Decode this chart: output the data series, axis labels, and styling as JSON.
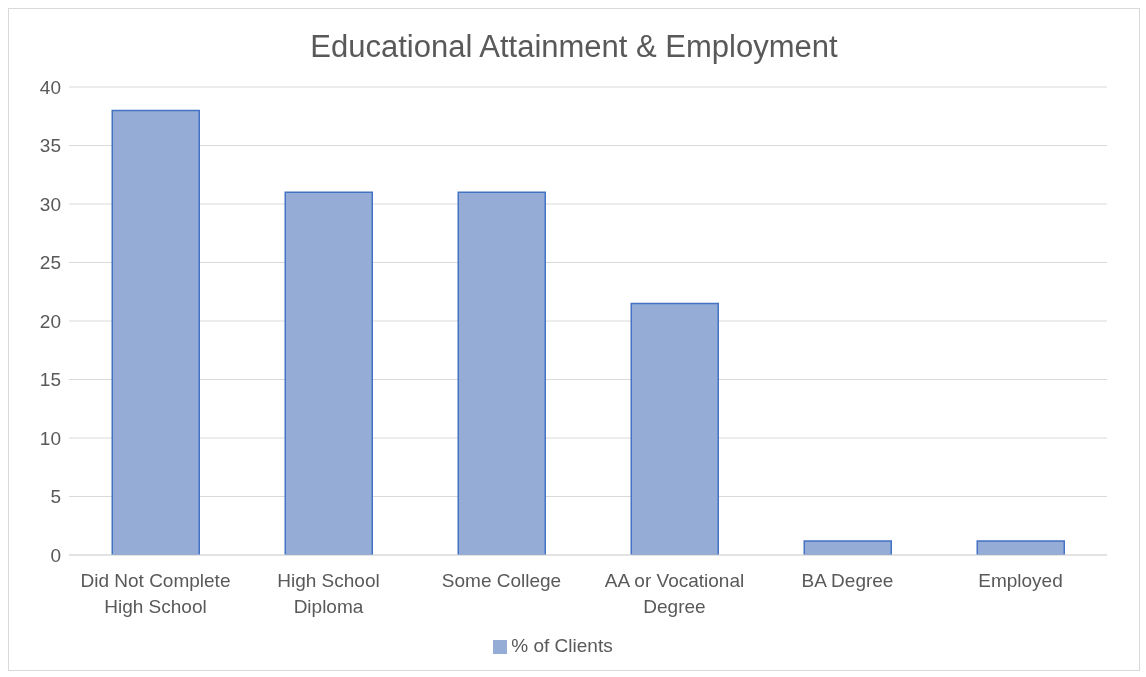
{
  "chart_data": {
    "type": "bar",
    "title": "Educational Attainment & Employment",
    "categories": [
      "Did Not Complete High School",
      "High School Diploma",
      "Some College",
      "AA or Vocational Degree",
      "BA Degree",
      "Employed"
    ],
    "series": [
      {
        "name": "% of Clients",
        "color": "#94acd6",
        "values": [
          38,
          31,
          31,
          21.5,
          1.2,
          1.2
        ]
      }
    ],
    "ylim": [
      0,
      40
    ],
    "yticks": [
      0,
      5,
      10,
      15,
      20,
      25,
      30,
      35,
      40
    ],
    "grid": "y",
    "legend": "bottom"
  }
}
